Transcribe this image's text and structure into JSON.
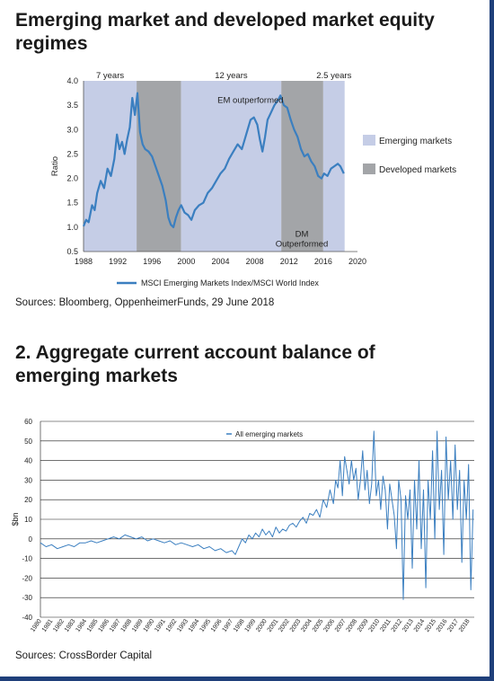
{
  "chart1": {
    "title": "Emerging market and developed market equity regimes",
    "source": "Sources: Bloomberg, OppenheimerFunds, 29 June 2018",
    "chart_data": {
      "type": "line",
      "title": "Emerging market and developed market equity regimes",
      "ylabel": "Ratio",
      "xlabel": "",
      "xlim": [
        1988,
        2020
      ],
      "ylim": [
        0.5,
        4.0
      ],
      "xticks": [
        1988,
        1992,
        1996,
        2000,
        2004,
        2008,
        2012,
        2016,
        2020
      ],
      "yticks": [
        0.5,
        1.0,
        1.5,
        2.0,
        2.5,
        3.0,
        3.5,
        4.0
      ],
      "grid": false,
      "legend_position": "right",
      "series": [
        {
          "name": "MSCI Emerging Markets Index/MSCI World Index",
          "x": [
            1988.0,
            1988.3,
            1988.6,
            1989.0,
            1989.3,
            1989.6,
            1990.0,
            1990.4,
            1990.8,
            1991.2,
            1991.6,
            1991.9,
            1992.2,
            1992.5,
            1992.8,
            1993.1,
            1993.4,
            1993.7,
            1994.0,
            1994.3,
            1994.6,
            1994.9,
            1995.2,
            1995.6,
            1996.0,
            1996.4,
            1996.8,
            1997.2,
            1997.6,
            1997.9,
            1998.2,
            1998.5,
            1998.8,
            1999.1,
            1999.4,
            1999.8,
            2000.2,
            2000.6,
            2001.0,
            2001.5,
            2002.0,
            2002.5,
            2003.0,
            2003.5,
            2004.0,
            2004.5,
            2005.0,
            2005.5,
            2006.0,
            2006.5,
            2007.0,
            2007.5,
            2007.9,
            2008.3,
            2008.6,
            2008.9,
            2009.2,
            2009.5,
            2009.9,
            2010.3,
            2010.7,
            2011.0,
            2011.4,
            2011.8,
            2012.2,
            2012.6,
            2013.0,
            2013.4,
            2013.8,
            2014.2,
            2014.6,
            2015.0,
            2015.4,
            2015.8,
            2016.1,
            2016.5,
            2016.9,
            2017.3,
            2017.7,
            2018.0,
            2018.4
          ],
          "values": [
            1.02,
            1.15,
            1.1,
            1.45,
            1.35,
            1.7,
            1.95,
            1.8,
            2.2,
            2.05,
            2.4,
            2.9,
            2.6,
            2.75,
            2.5,
            2.8,
            3.05,
            3.65,
            3.3,
            3.75,
            2.95,
            2.7,
            2.6,
            2.55,
            2.45,
            2.25,
            2.05,
            1.85,
            1.55,
            1.2,
            1.05,
            1.0,
            1.2,
            1.35,
            1.45,
            1.3,
            1.25,
            1.15,
            1.35,
            1.45,
            1.5,
            1.7,
            1.8,
            1.95,
            2.1,
            2.2,
            2.4,
            2.55,
            2.7,
            2.6,
            2.9,
            3.2,
            3.25,
            3.1,
            2.8,
            2.55,
            2.85,
            3.2,
            3.35,
            3.5,
            3.6,
            3.7,
            3.5,
            3.45,
            3.2,
            3.0,
            2.85,
            2.6,
            2.45,
            2.5,
            2.35,
            2.25,
            2.05,
            2.0,
            2.1,
            2.05,
            2.2,
            2.25,
            2.3,
            2.25,
            2.1
          ]
        }
      ],
      "regimes": [
        {
          "type": "Emerging markets",
          "from": 1988,
          "to": 1994.2,
          "label": "7 years",
          "color": "#c5cde6"
        },
        {
          "type": "Developed markets",
          "from": 1994.2,
          "to": 1999.4,
          "label": "",
          "color": "#a3a5a8"
        },
        {
          "type": "Emerging markets",
          "from": 1999.4,
          "to": 2011.1,
          "label": "12 years",
          "color": "#c5cde6"
        },
        {
          "type": "Developed markets",
          "from": 2011.1,
          "to": 2016.0,
          "label": "",
          "color": "#a3a5a8"
        },
        {
          "type": "Emerging markets",
          "from": 2016.0,
          "to": 2018.5,
          "label": "2.5 years",
          "color": "#c5cde6"
        }
      ],
      "annotations": [
        {
          "text": "EM outperformed",
          "x": 2007.5,
          "y": 3.55
        },
        {
          "text": "DM",
          "x": 2013.5,
          "y": 0.8
        },
        {
          "text": "Outperformed",
          "x": 2013.5,
          "y": 0.6
        }
      ],
      "regime_legend": [
        {
          "label": "Emerging markets",
          "color": "#c5cde6"
        },
        {
          "label": "Developed markets",
          "color": "#a3a5a8"
        }
      ],
      "line_color": "#3b7fc0"
    }
  },
  "chart2": {
    "title": "2. Aggregate current account balance of emerging markets",
    "source": "Sources: CrossBorder Capital",
    "chart_data": {
      "type": "line",
      "title": "2. Aggregate current account balance of emerging markets",
      "ylabel": "$bn",
      "xlabel": "",
      "xlim": [
        1980,
        2018.5
      ],
      "ylim": [
        -40,
        60
      ],
      "yticks": [
        -40,
        -30,
        -20,
        -10,
        0,
        10,
        20,
        30,
        40,
        50,
        60
      ],
      "xticks": [
        "1980",
        "1981",
        "1982",
        "1983",
        "1984",
        "1985",
        "1986",
        "1987",
        "1988",
        "1989",
        "1990",
        "1991",
        "1992",
        "1993",
        "1994",
        "1995",
        "1996",
        "1997",
        "1998",
        "1999",
        "2000",
        "2001",
        "2002",
        "2003",
        "2004",
        "2005",
        "2006",
        "2007",
        "2008",
        "2009",
        "2010",
        "2011",
        "2012",
        "2013",
        "2014",
        "2015",
        "2016",
        "2017",
        "2018"
      ],
      "grid": true,
      "legend_position": "top-left",
      "series": [
        {
          "name": "All emerging markets",
          "x": [
            1980.0,
            1980.5,
            1981.0,
            1981.5,
            1982.0,
            1982.5,
            1983.0,
            1983.5,
            1984.0,
            1984.5,
            1985.0,
            1985.5,
            1986.0,
            1986.5,
            1987.0,
            1987.5,
            1988.0,
            1988.5,
            1989.0,
            1989.5,
            1990.0,
            1990.5,
            1991.0,
            1991.5,
            1992.0,
            1992.5,
            1993.0,
            1993.5,
            1994.0,
            1994.5,
            1995.0,
            1995.5,
            1996.0,
            1996.5,
            1997.0,
            1997.3,
            1997.6,
            1997.9,
            1998.2,
            1998.5,
            1998.8,
            1999.1,
            1999.4,
            1999.7,
            2000.0,
            2000.3,
            2000.6,
            2000.9,
            2001.2,
            2001.5,
            2001.8,
            2002.1,
            2002.4,
            2002.7,
            2003.0,
            2003.3,
            2003.6,
            2003.9,
            2004.2,
            2004.5,
            2004.8,
            2005.1,
            2005.4,
            2005.7,
            2006.0,
            2006.2,
            2006.4,
            2006.6,
            2006.8,
            2007.0,
            2007.2,
            2007.4,
            2007.6,
            2007.8,
            2008.0,
            2008.2,
            2008.4,
            2008.6,
            2008.8,
            2009.0,
            2009.2,
            2009.4,
            2009.6,
            2009.8,
            2010.0,
            2010.2,
            2010.4,
            2010.6,
            2010.8,
            2011.0,
            2011.2,
            2011.4,
            2011.6,
            2011.8,
            2012.0,
            2012.2,
            2012.4,
            2012.6,
            2012.8,
            2013.0,
            2013.2,
            2013.4,
            2013.6,
            2013.8,
            2014.0,
            2014.2,
            2014.4,
            2014.6,
            2014.8,
            2015.0,
            2015.2,
            2015.4,
            2015.6,
            2015.8,
            2016.0,
            2016.2,
            2016.4,
            2016.6,
            2016.8,
            2017.0,
            2017.2,
            2017.4,
            2017.6,
            2017.8,
            2018.0,
            2018.2,
            2018.4
          ],
          "values": [
            -2,
            -4,
            -3,
            -5,
            -4,
            -3,
            -4,
            -2,
            -2,
            -1,
            -2,
            -1,
            0,
            1,
            0,
            2,
            1,
            0,
            1,
            -1,
            0,
            -1,
            -2,
            -1,
            -3,
            -2,
            -3,
            -4,
            -3,
            -5,
            -4,
            -6,
            -5,
            -7,
            -6,
            -8,
            -4,
            0,
            -2,
            2,
            0,
            3,
            1,
            5,
            2,
            4,
            1,
            6,
            3,
            5,
            4,
            7,
            8,
            6,
            9,
            11,
            8,
            13,
            12,
            15,
            11,
            20,
            16,
            25,
            18,
            30,
            26,
            40,
            22,
            42,
            35,
            28,
            40,
            30,
            36,
            20,
            30,
            45,
            25,
            35,
            18,
            28,
            55,
            22,
            30,
            15,
            32,
            25,
            5,
            28,
            20,
            12,
            -5,
            30,
            20,
            -31,
            22,
            10,
            25,
            -15,
            30,
            5,
            40,
            -5,
            25,
            -25,
            30,
            10,
            45,
            0,
            55,
            15,
            35,
            -8,
            52,
            20,
            40,
            10,
            48,
            15,
            35,
            -12,
            30,
            10,
            38,
            -26,
            15
          ]
        }
      ],
      "line_color": "#3b7fc0"
    }
  }
}
